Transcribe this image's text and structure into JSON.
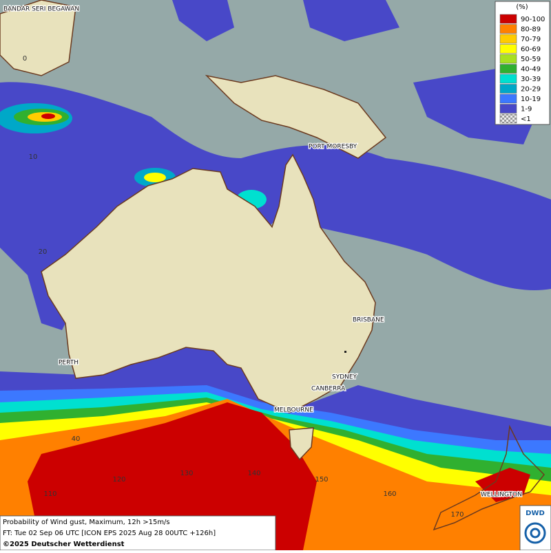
{
  "map": {
    "places": [
      {
        "label": "BANDAR SERI BEGAWAN"
      },
      {
        "label": "PORT MORESBY"
      },
      {
        "label": "BRISBANE"
      },
      {
        "label": "PERTH"
      },
      {
        "label": "SYDNEY"
      },
      {
        "label": "CANBERRA"
      },
      {
        "label": "MELBOURNE"
      },
      {
        "label": "WELLINGTON"
      }
    ],
    "latitudes": [
      0,
      10,
      20,
      40
    ],
    "longitudes": [
      110,
      120,
      130,
      140,
      150,
      160,
      170
    ]
  },
  "legend": {
    "title": "(%)",
    "items": [
      {
        "label": "90-100",
        "color": "#cc0000"
      },
      {
        "label": "80-89",
        "color": "#ff8000"
      },
      {
        "label": "70-79",
        "color": "#ffcc00"
      },
      {
        "label": "60-69",
        "color": "#ffff00"
      },
      {
        "label": "50-59",
        "color": "#a8e020"
      },
      {
        "label": "40-49",
        "color": "#30b030"
      },
      {
        "label": "30-39",
        "color": "#00e0d0"
      },
      {
        "label": "20-29",
        "color": "#00a8c8"
      },
      {
        "label": "10-19",
        "color": "#3c78ff"
      },
      {
        "label": "1-9",
        "color": "#4848c8"
      },
      {
        "label": "<1",
        "color": "checker"
      }
    ]
  },
  "footer": {
    "lines": [
      "Probability of Wind gust, Maximum, 12h >15m/s",
      "FT: Tue 02 Sep 06 UTC [ICON EPS 2025 Aug 28 00UTC +126h]"
    ],
    "copyright": "©2025 Deutscher Wetterdienst"
  },
  "logo": "DWD"
}
